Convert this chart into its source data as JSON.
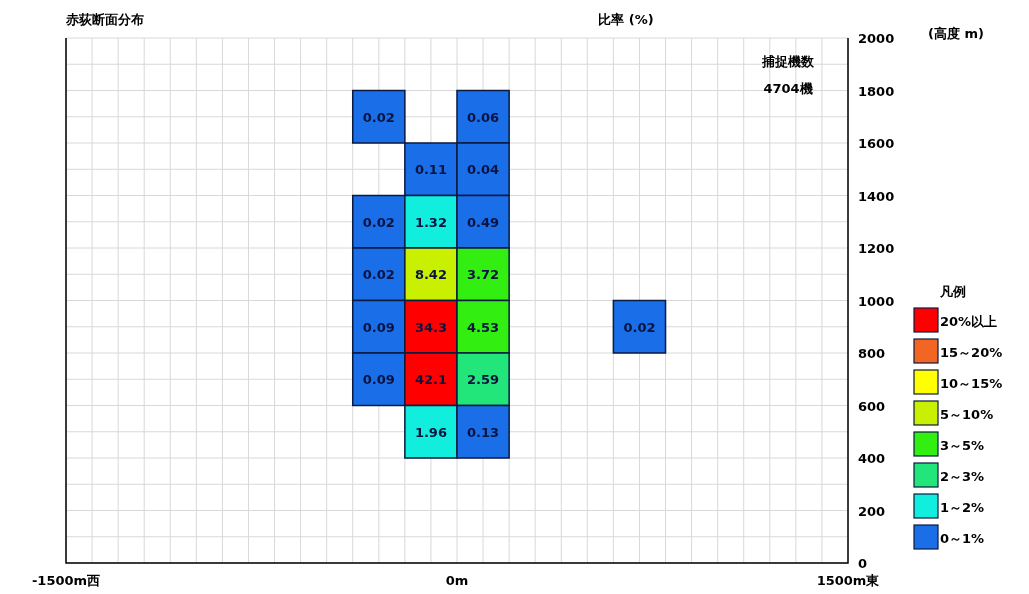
{
  "chart_data": {
    "type": "heatmap",
    "title": "赤荻断面分布",
    "subtitle": "比率 (%)",
    "ylabel": "(高度 m)",
    "legend_title": "凡例",
    "annotations": [
      "捕捉機数",
      "4704機"
    ],
    "x": [
      -300,
      -100,
      100,
      700
    ],
    "y": [
      1700,
      1500,
      1300,
      1100,
      900,
      700,
      500
    ],
    "cells": [
      [
        0.02,
        null,
        0.06,
        null
      ],
      [
        null,
        0.11,
        0.04,
        null
      ],
      [
        0.02,
        1.32,
        0.49,
        null
      ],
      [
        0.02,
        8.42,
        3.72,
        null
      ],
      [
        0.09,
        34.3,
        4.53,
        0.02
      ],
      [
        0.09,
        42.1,
        2.59,
        null
      ],
      [
        null,
        1.96,
        0.13,
        null
      ]
    ],
    "colors": [
      [
        "#1a6ee8",
        null,
        "#1a6ee8",
        null
      ],
      [
        null,
        "#1a6ee8",
        "#1a6ee8",
        null
      ],
      [
        "#1a6ee8",
        "#11eedd",
        "#1a6ee8",
        null
      ],
      [
        "#1a6ee8",
        "#c8f000",
        "#33ee11",
        null
      ],
      [
        "#1a6ee8",
        "#ff0000",
        "#33ee11",
        "#1a6ee8"
      ],
      [
        "#1a6ee8",
        "#ff0000",
        "#22e67a",
        null
      ],
      [
        null,
        "#11eedd",
        "#1a6ee8",
        null
      ]
    ],
    "data_labels": true,
    "series": [
      {
        "name": "20%以上",
        "color": "#ff0000",
        "values": [
          null,
          null,
          null,
          null
        ]
      },
      {
        "name": "15～20%",
        "color": "#f26522",
        "values": [
          null,
          null,
          null,
          null
        ]
      },
      {
        "name": "10～15%",
        "color": "#ffff00",
        "values": [
          null,
          null,
          null,
          null
        ]
      },
      {
        "name": "5～10%",
        "color": "#c8f000",
        "values": [
          null,
          null,
          null,
          null
        ]
      },
      {
        "name": "3～5%",
        "color": "#33ee11",
        "values": [
          null,
          null,
          null,
          null
        ]
      },
      {
        "name": "2～3%",
        "color": "#22e67a",
        "values": [
          null,
          null,
          null,
          null
        ]
      },
      {
        "name": "1～2%",
        "color": "#11eedd",
        "values": [
          null,
          null,
          null,
          null
        ]
      },
      {
        "name": "0～1%",
        "color": "#1a6ee8",
        "values": [
          null,
          null,
          null,
          null
        ]
      }
    ],
    "legend": "right",
    "grid": true,
    "xlim": [
      -1500,
      1500
    ],
    "xticks": [
      {
        "value": -1500,
        "label": "-1500m西"
      },
      {
        "value": -1400,
        "label": null
      },
      {
        "value": -1300,
        "label": null
      },
      {
        "value": -1200,
        "label": null
      },
      {
        "value": -1100,
        "label": null
      },
      {
        "value": -1000,
        "label": null
      },
      {
        "value": -900,
        "label": null
      },
      {
        "value": -800,
        "label": null
      },
      {
        "value": -700,
        "label": null
      },
      {
        "value": -600,
        "label": null
      },
      {
        "value": -500,
        "label": null
      },
      {
        "value": -400,
        "label": null
      },
      {
        "value": -300,
        "label": null
      },
      {
        "value": -200,
        "label": null
      },
      {
        "value": -100,
        "label": null
      },
      {
        "value": 0,
        "label": "0m"
      },
      {
        "value": 100,
        "label": null
      },
      {
        "value": 200,
        "label": null
      },
      {
        "value": 300,
        "label": null
      },
      {
        "value": 400,
        "label": null
      },
      {
        "value": 500,
        "label": null
      },
      {
        "value": 600,
        "label": null
      },
      {
        "value": 700,
        "label": null
      },
      {
        "value": 800,
        "label": null
      },
      {
        "value": 900,
        "label": null
      },
      {
        "value": 1000,
        "label": null
      },
      {
        "value": 1100,
        "label": null
      },
      {
        "value": 1200,
        "label": null
      },
      {
        "value": 1300,
        "label": null
      },
      {
        "value": 1400,
        "label": null
      },
      {
        "value": 1500,
        "label": "1500m東"
      }
    ],
    "ylim": [
      0,
      2000
    ],
    "yticks": [
      0,
      {
        "value": 100,
        "label": null
      },
      200,
      {
        "value": 300,
        "label": null
      },
      400,
      {
        "value": 500,
        "label": null
      },
      600,
      {
        "value": 700,
        "label": null
      },
      800,
      {
        "value": 900,
        "label": null
      },
      1000,
      {
        "value": 1100,
        "label": null
      },
      1200,
      {
        "value": 1300,
        "label": null
      },
      1400,
      {
        "value": 1500,
        "label": null
      },
      1600,
      {
        "value": 1700,
        "label": null
      },
      1800,
      {
        "value": 1900,
        "label": null
      },
      2000
    ]
  }
}
